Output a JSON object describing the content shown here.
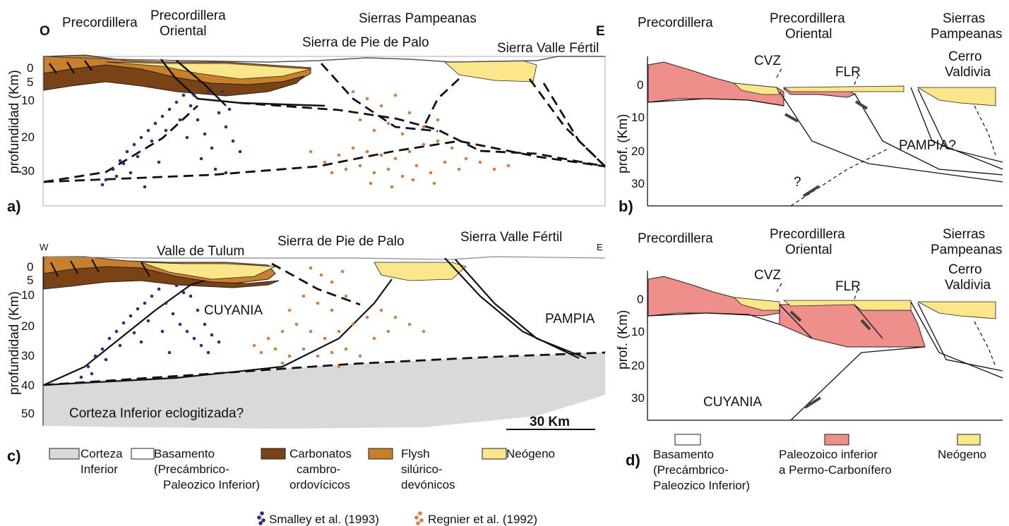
{
  "panel_a": {
    "letter": "a)",
    "dir_w": "O",
    "dir_e": "E",
    "region1": "Precordillera",
    "region2_l1": "Precordillera",
    "region2_l2": "Oriental",
    "region3": "Sierras Pampeanas",
    "feature1": "Sierra de Pie de Palo",
    "feature2": "Sierra Valle Fértil",
    "yaxis": "profundidad (Km)",
    "ticks": [
      "0",
      "5",
      "10",
      "20",
      "30"
    ]
  },
  "panel_b": {
    "letter": "b)",
    "region1": "Precordillera",
    "region2_l1": "Precordillera",
    "region2_l2": "Oriental",
    "region3_l1": "Sierras",
    "region3_l2": "Pampeanas",
    "cvz": "CVZ",
    "flr": "FLR",
    "cerro_l1": "Cerro",
    "cerro_l2": "Valdivia",
    "pampia": "PAMPIA?",
    "question": "?",
    "yaxis": "prof. (Km)",
    "ticks": [
      "0",
      "10",
      "20",
      "30"
    ]
  },
  "panel_c": {
    "letter": "c)",
    "dir_w": "W",
    "dir_e": "E",
    "valle": "Valle de Tulum",
    "feature1": "Sierra de Pie de Palo",
    "feature2": "Sierra Valle Fértil",
    "cuyania": "CUYANIA",
    "pampia": "PAMPIA",
    "corteza": "Corteza Inferior eclogitizada?",
    "scale": "30 Km",
    "yaxis": "profundidad (Km)",
    "ticks": [
      "0",
      "5",
      "10",
      "20",
      "30",
      "40",
      "50"
    ]
  },
  "panel_d": {
    "letter": "d)",
    "region1": "Precordillera",
    "region2_l1": "Precordillera",
    "region2_l2": "Oriental",
    "region3_l1": "Sierras",
    "region3_l2": "Pampeanas",
    "cvz": "CVZ",
    "flr": "FLR",
    "cerro_l1": "Cerro",
    "cerro_l2": "Valdivia",
    "cuyania": "CUYANIA",
    "yaxis": "prof. (Km)",
    "ticks": [
      "0",
      "10",
      "20",
      "30"
    ]
  },
  "legend_c": [
    {
      "l1": "Corteza",
      "l2": "Inferior",
      "l3": "",
      "color": "#d9d9d9"
    },
    {
      "l1": "Basamento",
      "l2": "(Precámbrico-",
      "l3": "Paleozico Inferior)",
      "color": "#ffffff"
    },
    {
      "l1": "Carbonatos",
      "l2": "cambro-",
      "l3": "ordovícicos",
      "color": "#7a4315"
    },
    {
      "l1": "Flysh",
      "l2": "silúrico-",
      "l3": "devónicos",
      "color": "#c8802a"
    },
    {
      "l1": "Neógeno",
      "l2": "",
      "l3": "",
      "color": "#fbe78a"
    }
  ],
  "legend_d": [
    {
      "l1": "Basamento",
      "l2": "(Precámbrico-",
      "l3": "Paleozico Inferior)",
      "color": "#ffffff"
    },
    {
      "l1": "Paleozoico inferior",
      "l2": "a Permo-Carbonífero",
      "l3": "",
      "color": "#ef8f8c"
    },
    {
      "l1": "Neógeno",
      "l2": "",
      "l3": "",
      "color": "#fbe78a"
    }
  ],
  "sources": {
    "smalley": "Smalley et al. (1993)",
    "regnier": "Regnier et al. (1992)",
    "smalley_color": "#2e2a8f",
    "regnier_color": "#e0793a"
  },
  "colors": {
    "flysch": "#c8802a",
    "carbonate": "#7a4315",
    "neogene": "#fbe78a",
    "paleozoic": "#ef8f8c",
    "lower_crust": "#d9d9d9"
  }
}
